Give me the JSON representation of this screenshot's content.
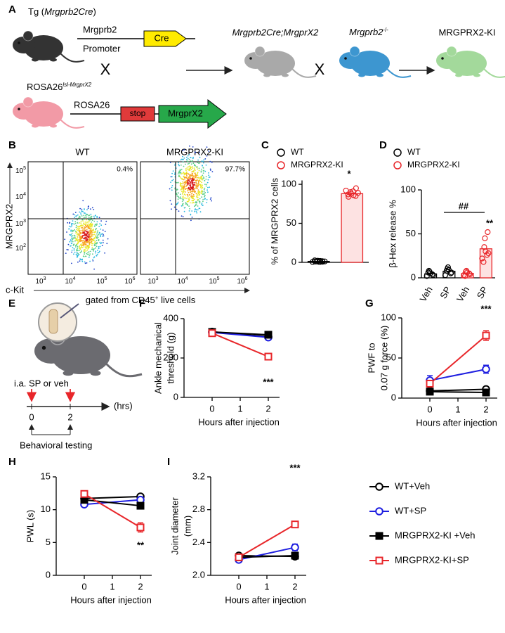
{
  "panel_labels": [
    "A",
    "B",
    "C",
    "D",
    "E",
    "F",
    "G",
    "H",
    "I"
  ],
  "schematic_a": {
    "tg": {
      "prefix": "Tg (",
      "gene": "Mrgprb2Cre",
      "suffix": ")"
    },
    "promoter_top": "Mrgprb2",
    "promoter_bottom": "Promoter",
    "cre": "Cre",
    "cross1": "X",
    "rosa_label": {
      "base": "ROSA26",
      "sup": "lsl-MrgprX2"
    },
    "rosa": "ROSA26",
    "stop": "stop",
    "mrgprx2": "MrgprX2",
    "offspring": "Mrgprb2Cre;MrgprX2",
    "cross2": "X",
    "ko": {
      "base": "Mrgprb2",
      "sup": "-/-"
    },
    "result": "MRGPRX2-KI"
  },
  "flow_b": {
    "plots": [
      {
        "title": "WT",
        "percent": "0.4%"
      },
      {
        "title": "MRGPRX2-KI",
        "percent": "97.7%"
      }
    ],
    "ylabel": "MRGPRX2",
    "xlabel": "c-Kit",
    "gate": {
      "prefix": "gated from CD45",
      "sup": "+",
      "suffix": " live cells"
    },
    "yticks": [
      {
        "base": "10",
        "exp": "5"
      },
      {
        "base": "10",
        "exp": "4"
      },
      {
        "base": "10",
        "exp": "3"
      },
      {
        "base": "10",
        "exp": "2"
      }
    ],
    "xticks": [
      [
        {
          "base": "10",
          "exp": "3"
        },
        {
          "base": "10",
          "exp": "4"
        },
        {
          "base": "10",
          "exp": "5"
        },
        {
          "base": "10",
          "exp": "6"
        }
      ],
      [
        {
          "base": "10",
          "exp": "3"
        },
        {
          "base": "10",
          "exp": "4"
        },
        {
          "base": "10",
          "exp": "5"
        },
        {
          "base": "10",
          "exp": "6"
        }
      ]
    ]
  },
  "schematic_e": {
    "injection": "i.a. SP or veh",
    "times": [
      "0",
      "2"
    ],
    "unit": "(hrs)",
    "testing": "Behavioral testing"
  },
  "chart_data": [
    {
      "type": "bar",
      "ylabel": "% of MRGPRX2 cells",
      "ylim": [
        0,
        105
      ],
      "yticks": [
        0,
        50,
        100
      ],
      "annotations": [
        "*"
      ],
      "series": [
        {
          "name": "WT",
          "color": "#000000",
          "fill": "#ffffff",
          "values": [
            1.2
          ],
          "points": [
            [
              0.5,
              1,
              2,
              1.5,
              0.8,
              2.5,
              1,
              0.3,
              1.8,
              1.2
            ]
          ]
        },
        {
          "name": "MRGPRX2-KI",
          "color": "#e8262a",
          "fill": "#fde2e2",
          "values": [
            88
          ],
          "points": [
            [
              92,
              90,
              88,
              85,
              95,
              87,
              84,
              91,
              86,
              89
            ]
          ]
        }
      ]
    },
    {
      "type": "bar",
      "ylabel": "β-Hex release %",
      "ylim": [
        0,
        100
      ],
      "yticks": [
        0,
        50,
        100
      ],
      "annotations": [
        "##",
        "**"
      ],
      "categories": [
        "Veh",
        "SP",
        "Veh",
        "SP"
      ],
      "series": [
        {
          "name": "WT",
          "color": "#000000",
          "fill": "#ffffff",
          "values": [
            4.5,
            7.5,
            null,
            null
          ],
          "points": [
            [
              2,
              5,
              7,
              3,
              4,
              8,
              6
            ],
            [
              3,
              9,
              12,
              6,
              5,
              10,
              8
            ],
            null,
            null
          ]
        },
        {
          "name": "MRGPRX2-KI",
          "color": "#e8262a",
          "fill": "#fde2e2",
          "values": [
            null,
            null,
            5,
            33
          ],
          "points": [
            null,
            null,
            [
              3,
              6,
              8,
              4,
              5,
              7,
              2
            ],
            [
              22,
              30,
              45,
              28,
              52,
              35,
              18,
              26
            ]
          ]
        }
      ]
    },
    {
      "type": "line",
      "ylabel": [
        "Ankle mechanical",
        "threshold (g)"
      ],
      "xlabel": "Hours after injection",
      "annotation": "***",
      "x": [
        0,
        2
      ],
      "xlim": [
        -1,
        2.4
      ],
      "xticks": [
        0,
        1,
        2
      ],
      "ylim": [
        0,
        400
      ],
      "yticks": [
        0,
        200,
        400
      ],
      "series": [
        {
          "name": "WT+Veh",
          "color": "#000000",
          "marker": "circle",
          "filled": false,
          "values": [
            333,
            308
          ],
          "errors": [
            5,
            5
          ]
        },
        {
          "name": "WT+SP",
          "color": "#1f1fe0",
          "marker": "circle",
          "filled": false,
          "values": [
            330,
            305
          ],
          "errors": [
            5,
            5
          ]
        },
        {
          "name": "MRGPRX2-KI +Veh",
          "color": "#000000",
          "marker": "square",
          "filled": true,
          "values": [
            332,
            318
          ],
          "errors": [
            5,
            6
          ]
        },
        {
          "name": "MRGPRX2-KI+SP",
          "color": "#e8262a",
          "marker": "square",
          "filled": false,
          "values": [
            326,
            207
          ],
          "errors": [
            5,
            9
          ]
        }
      ]
    },
    {
      "type": "line",
      "ylabel": [
        "PWF to",
        "0.07 g force (%)"
      ],
      "xlabel": "Hours after injection",
      "annotation": "***",
      "x": [
        0,
        2
      ],
      "xlim": [
        -1,
        2.4
      ],
      "xticks": [
        0,
        1,
        2
      ],
      "ylim": [
        0,
        100
      ],
      "yticks": [
        0,
        50,
        100
      ],
      "series": [
        {
          "name": "WT+Veh",
          "color": "#000000",
          "marker": "circle",
          "filled": false,
          "values": [
            9,
            11
          ],
          "errors": [
            2,
            2
          ]
        },
        {
          "name": "WT+SP",
          "color": "#1f1fe0",
          "marker": "circle",
          "filled": false,
          "values": [
            22,
            36
          ],
          "errors": [
            6,
            5
          ]
        },
        {
          "name": "MRGPRX2-KI +Veh",
          "color": "#000000",
          "marker": "square",
          "filled": true,
          "values": [
            8,
            7
          ],
          "errors": [
            2,
            2
          ]
        },
        {
          "name": "MRGPRX2-KI+SP",
          "color": "#e8262a",
          "marker": "square",
          "filled": false,
          "values": [
            18,
            78
          ],
          "errors": [
            3,
            6
          ]
        }
      ]
    },
    {
      "type": "line",
      "ylabel": "PWL (s)",
      "xlabel": "Hours after injection",
      "annotation": "**",
      "x": [
        0,
        2
      ],
      "xlim": [
        -1,
        2.4
      ],
      "xticks": [
        0,
        1,
        2
      ],
      "ylim": [
        0,
        15
      ],
      "yticks": [
        0,
        5,
        10,
        15
      ],
      "series": [
        {
          "name": "WT+Veh",
          "color": "#000000",
          "marker": "circle",
          "filled": false,
          "values": [
            11.7,
            12.0
          ],
          "errors": [
            0.3,
            0.3
          ]
        },
        {
          "name": "WT+SP",
          "color": "#1f1fe0",
          "marker": "circle",
          "filled": false,
          "values": [
            10.8,
            11.5
          ],
          "errors": [
            0.2,
            0.3
          ]
        },
        {
          "name": "MRGPRX2-KI +Veh",
          "color": "#000000",
          "marker": "square",
          "filled": true,
          "values": [
            11.5,
            10.6
          ],
          "errors": [
            0.3,
            0.4
          ]
        },
        {
          "name": "MRGPRX2-KI+SP",
          "color": "#e8262a",
          "marker": "square",
          "filled": false,
          "values": [
            12.4,
            7.3
          ],
          "errors": [
            0.3,
            0.7
          ]
        }
      ]
    },
    {
      "type": "line",
      "ylabel": [
        "Joint diameter",
        "(mm)"
      ],
      "xlabel": "Hours after injection",
      "annotation": "***",
      "legend": true,
      "x": [
        0,
        2
      ],
      "xlim": [
        -1,
        2.4
      ],
      "xticks": [
        0,
        1,
        2
      ],
      "ylim": [
        2.0,
        3.2
      ],
      "yticks": [
        {
          "value": 2,
          "label": "2.0"
        },
        2.4,
        2.8,
        3.2
      ],
      "series": [
        {
          "name": "WT+Veh",
          "color": "#000000",
          "marker": "circle",
          "filled": false,
          "values": [
            2.24,
            2.23
          ],
          "errors": [
            0.02,
            0.02
          ]
        },
        {
          "name": "WT+SP",
          "color": "#1f1fe0",
          "marker": "circle",
          "filled": false,
          "values": [
            2.19,
            2.34
          ],
          "errors": [
            0.02,
            0.04
          ]
        },
        {
          "name": "MRGPRX2-KI +Veh",
          "color": "#000000",
          "marker": "square",
          "filled": true,
          "values": [
            2.22,
            2.24
          ],
          "errors": [
            0.02,
            0.02
          ]
        },
        {
          "name": "MRGPRX2-KI+SP",
          "color": "#e8262a",
          "marker": "square",
          "filled": false,
          "values": [
            2.22,
            2.62
          ],
          "errors": [
            0.02,
            0.03
          ]
        }
      ]
    }
  ]
}
